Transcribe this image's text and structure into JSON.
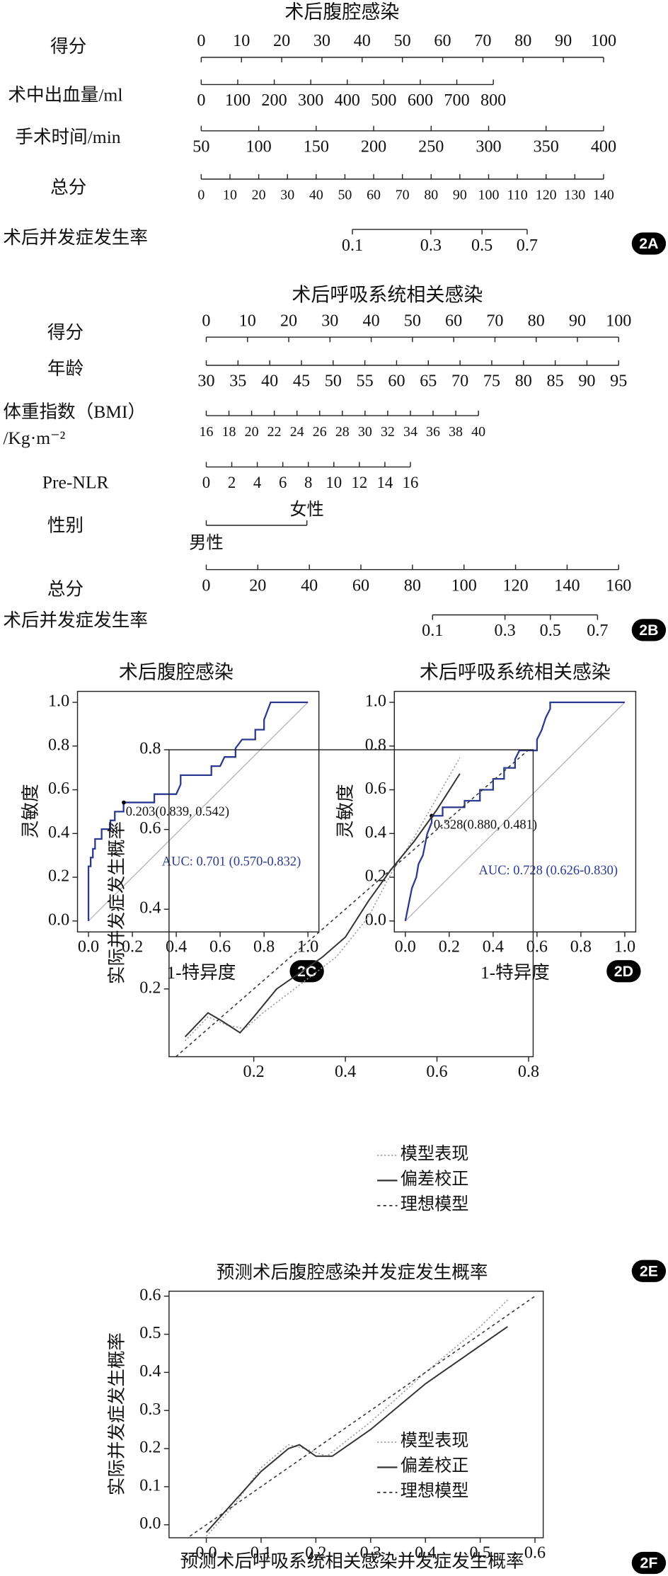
{
  "chart_data": [
    {
      "type": "nomogram",
      "title": "术后腹腔感染",
      "panel_label": "2A",
      "rows": [
        {
          "label": [
            "得分"
          ],
          "lim": [
            0,
            100
          ],
          "ticks": [
            0,
            10,
            20,
            30,
            40,
            50,
            60,
            70,
            80,
            90,
            100
          ]
        },
        {
          "label": [
            "术中出血量/ml"
          ],
          "lim": [
            0,
            800
          ],
          "points": [
            0,
            72.6
          ],
          "ticks": [
            0,
            100,
            200,
            300,
            400,
            500,
            600,
            700,
            800
          ]
        },
        {
          "label": [
            "手术时间/min"
          ],
          "lim": [
            50,
            400
          ],
          "ticks": [
            50,
            100,
            150,
            200,
            250,
            300,
            350,
            400
          ]
        },
        {
          "label": [
            "总分"
          ],
          "lim": [
            0,
            140
          ],
          "ticks": [
            0,
            10,
            20,
            30,
            40,
            50,
            60,
            70,
            80,
            90,
            100,
            110,
            120,
            130,
            140
          ]
        },
        {
          "label": [
            "术后并发症发生率"
          ],
          "ticks": [
            0.1,
            0.3,
            0.5,
            0.7
          ],
          "tick_total_points": [
            52.6,
            79.9,
            97.7,
            113.4
          ]
        }
      ]
    },
    {
      "type": "nomogram",
      "title": "术后呼吸系统相关感染",
      "panel_label": "2B",
      "rows": [
        {
          "label": [
            "得分"
          ],
          "lim": [
            0,
            100
          ],
          "ticks": [
            0,
            10,
            20,
            30,
            40,
            50,
            60,
            70,
            80,
            90,
            100
          ]
        },
        {
          "label": [
            "年龄"
          ],
          "lim": [
            30,
            95
          ],
          "ticks": [
            30,
            35,
            40,
            45,
            50,
            55,
            60,
            65,
            70,
            75,
            80,
            85,
            90,
            95
          ]
        },
        {
          "label": [
            "体重指数（BMI）",
            "/Kg·m⁻²"
          ],
          "lim": [
            16,
            40
          ],
          "points": [
            0,
            66
          ],
          "ticks": [
            16,
            18,
            20,
            22,
            24,
            26,
            28,
            30,
            32,
            34,
            36,
            38,
            40
          ]
        },
        {
          "label": [
            "Pre-NLR"
          ],
          "lim": [
            0,
            16
          ],
          "points": [
            0,
            49.5
          ],
          "ticks": [
            0,
            2,
            4,
            6,
            8,
            10,
            12,
            14,
            16
          ]
        },
        {
          "label": [
            "性别"
          ],
          "categories": [
            "男性",
            "女性"
          ],
          "category_points": [
            0,
            24.4
          ]
        },
        {
          "label": [
            "总分"
          ],
          "lim": [
            0,
            160
          ],
          "ticks": [
            0,
            20,
            40,
            60,
            80,
            100,
            120,
            140,
            160
          ]
        },
        {
          "label": [
            "术后并发症发生率"
          ],
          "ticks": [
            0.1,
            0.3,
            0.5,
            0.7
          ],
          "tick_total_points": [
            87.8,
            115.9,
            133.5,
            151.8
          ]
        }
      ]
    },
    {
      "type": "roc",
      "title": "术后腹腔感染",
      "panel_label": "2C",
      "x_label": "1-特异度",
      "y_label": "灵敏度",
      "color": "#2b3990",
      "x": [
        0,
        0,
        0.01,
        0.01,
        0.02,
        0.02,
        0.03,
        0.03,
        0.06,
        0.06,
        0.1,
        0.1,
        0.12,
        0.12,
        0.16,
        0.16,
        0.3,
        0.3,
        0.4,
        0.42,
        0.42,
        0.56,
        0.56,
        0.6,
        0.62,
        0.67,
        0.67,
        0.7,
        0.76,
        0.76,
        0.8,
        0.8,
        0.83,
        1
      ],
      "values": [
        0,
        0.25,
        0.25,
        0.29,
        0.29,
        0.33,
        0.33,
        0.375,
        0.375,
        0.42,
        0.42,
        0.46,
        0.46,
        0.5,
        0.5,
        0.542,
        0.542,
        0.58,
        0.58,
        0.625,
        0.667,
        0.667,
        0.708,
        0.708,
        0.75,
        0.75,
        0.79,
        0.83,
        0.83,
        0.875,
        0.875,
        0.92,
        1,
        1
      ],
      "cutoff_point": {
        "x": 0.161,
        "y": 0.542,
        "label": "0.203(0.839, 0.542)"
      },
      "auc_label": "AUC: 0.701 (0.570-0.832)",
      "xlim": [
        -0.05,
        1.05
      ],
      "ylim": [
        -0.05,
        1.05
      ],
      "xticks": [
        {
          "value": 0,
          "label": "0.0"
        },
        0.2,
        0.4,
        0.6,
        0.8,
        {
          "value": 1,
          "label": "1.0"
        }
      ],
      "yticks": [
        {
          "value": 0,
          "label": "0.0"
        },
        0.2,
        0.4,
        0.6,
        0.8,
        {
          "value": 1,
          "label": "1.0"
        }
      ]
    },
    {
      "type": "roc",
      "title": "术后呼吸系统相关感染",
      "panel_label": "2D",
      "x_label": "1-特异度",
      "y_label": "灵敏度",
      "color": "#2b3990",
      "x": [
        0,
        0.01,
        0.02,
        0.03,
        0.05,
        0.06,
        0.08,
        0.09,
        0.1,
        0.12,
        0.12,
        0.17,
        0.17,
        0.27,
        0.27,
        0.34,
        0.34,
        0.4,
        0.4,
        0.45,
        0.45,
        0.5,
        0.5,
        0.52,
        0.6,
        0.6,
        0.62,
        0.64,
        0.66,
        0.66,
        1
      ],
      "values": [
        0,
        0.05,
        0.1,
        0.15,
        0.2,
        0.26,
        0.3,
        0.35,
        0.4,
        0.45,
        0.481,
        0.481,
        0.52,
        0.52,
        0.55,
        0.55,
        0.6,
        0.6,
        0.65,
        0.65,
        0.7,
        0.7,
        0.74,
        0.78,
        0.78,
        0.83,
        0.87,
        0.93,
        0.97,
        1,
        1
      ],
      "cutoff_point": {
        "x": 0.12,
        "y": 0.481,
        "label": "0.328(0.880, 0.481)"
      },
      "auc_label": "AUC: 0.728 (0.626-0.830)",
      "xlim": [
        -0.05,
        1.05
      ],
      "ylim": [
        -0.05,
        1.05
      ],
      "xticks": [
        {
          "value": 0,
          "label": "0.0"
        },
        0.2,
        0.4,
        0.6,
        0.8,
        {
          "value": 1,
          "label": "1.0"
        }
      ],
      "yticks": [
        {
          "value": 0,
          "label": "0.0"
        },
        0.2,
        0.4,
        0.6,
        0.8,
        {
          "value": 1,
          "label": "1.0"
        }
      ]
    },
    {
      "type": "calibration",
      "panel_label": "2E",
      "x_label": "预测术后腹腔感染并发症发生概率",
      "y_label": "实际并发症发生概率",
      "xlim": [
        0.015,
        0.81
      ],
      "ylim": [
        0.03,
        0.8
      ],
      "xticks": [
        0.2,
        0.4,
        0.6,
        0.8
      ],
      "yticks": [
        0.2,
        0.4,
        0.6,
        0.8
      ],
      "series": [
        {
          "name": "模型表现",
          "color": "#999999",
          "style": "dotted",
          "x": [
            0.05,
            0.1,
            0.14,
            0.18,
            0.22,
            0.3,
            0.38,
            0.45,
            0.5,
            0.55,
            0.6,
            0.65
          ],
          "values": [
            0.07,
            0.13,
            0.11,
            0.1,
            0.14,
            0.21,
            0.28,
            0.38,
            0.49,
            0.58,
            0.68,
            0.78
          ]
        },
        {
          "name": "偏差校正",
          "color": "#333333",
          "style": "solid",
          "x": [
            0.05,
            0.1,
            0.13,
            0.17,
            0.2,
            0.25,
            0.3,
            0.35,
            0.4,
            0.45,
            0.5,
            0.55,
            0.6,
            0.65
          ],
          "values": [
            0.08,
            0.14,
            0.12,
            0.09,
            0.13,
            0.2,
            0.24,
            0.28,
            0.33,
            0.42,
            0.5,
            0.57,
            0.65,
            0.74
          ]
        },
        {
          "name": "理想模型",
          "color": "#333333",
          "style": "dashed",
          "x": [
            0.03,
            0.8
          ],
          "values": [
            0.03,
            0.8
          ]
        }
      ]
    },
    {
      "type": "calibration",
      "panel_label": "2F",
      "x_label": "预测术后呼吸系统相关感染并发症发生概率",
      "y_label": "实际并发症发生概率",
      "xlim": [
        -0.068,
        0.615
      ],
      "ylim": [
        -0.034,
        0.613
      ],
      "xticks": [
        {
          "value": 0,
          "label": "0.0"
        },
        0.1,
        0.2,
        0.3,
        0.4,
        0.5,
        0.6
      ],
      "yticks": [
        {
          "value": 0,
          "label": "0.0"
        },
        0.1,
        0.2,
        0.3,
        0.4,
        0.5,
        0.6
      ],
      "series": [
        {
          "name": "模型表现",
          "color": "#999999",
          "style": "dotted",
          "x": [
            0,
            0.05,
            0.1,
            0.15,
            0.18,
            0.22,
            0.3,
            0.4,
            0.5,
            0.55
          ],
          "values": [
            -0.03,
            0.05,
            0.15,
            0.21,
            0.2,
            0.18,
            0.27,
            0.4,
            0.52,
            0.59
          ]
        },
        {
          "name": "偏差校正",
          "color": "#333333",
          "style": "solid",
          "x": [
            0,
            0.05,
            0.1,
            0.15,
            0.17,
            0.2,
            0.23,
            0.3,
            0.4,
            0.5,
            0.55
          ],
          "values": [
            -0.02,
            0.06,
            0.14,
            0.2,
            0.21,
            0.18,
            0.18,
            0.25,
            0.37,
            0.47,
            0.52
          ]
        },
        {
          "name": "理想模型",
          "color": "#333333",
          "style": "dashed",
          "x": [
            -0.03,
            0.6
          ],
          "values": [
            -0.03,
            0.6
          ]
        }
      ]
    }
  ]
}
